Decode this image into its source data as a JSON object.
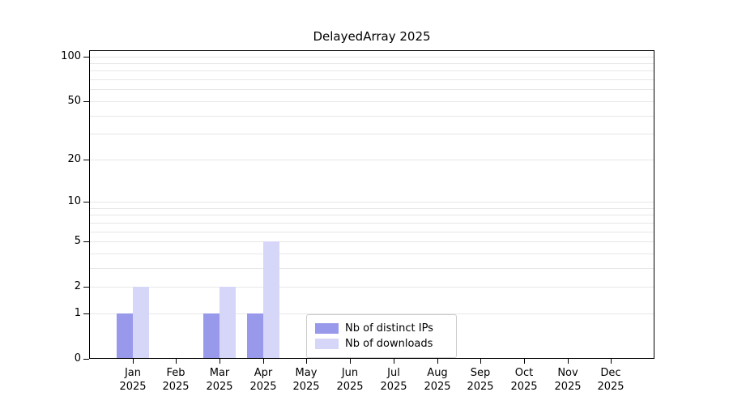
{
  "chart_data": {
    "type": "bar",
    "title": "DelayedArray 2025",
    "categories": [
      "Jan",
      "Feb",
      "Mar",
      "Apr",
      "May",
      "Jun",
      "Jul",
      "Aug",
      "Sep",
      "Oct",
      "Nov",
      "Dec"
    ],
    "year": "2025",
    "series": [
      {
        "name": "Nb of distinct IPs",
        "color": "#9999ec",
        "values": [
          1,
          0,
          1,
          1,
          0,
          0,
          0,
          0,
          0,
          0,
          0,
          0
        ]
      },
      {
        "name": "Nb of downloads",
        "color": "#d6d6f8",
        "values": [
          2,
          0,
          2,
          5,
          0,
          0,
          0,
          0,
          0,
          0,
          0,
          0
        ]
      }
    ],
    "yscale": "log1p",
    "ylim": [
      0,
      110
    ],
    "yticks": [
      0,
      1,
      2,
      5,
      10,
      20,
      50,
      100
    ],
    "gridline_values": [
      1,
      2,
      3,
      4,
      5,
      6,
      7,
      8,
      9,
      10,
      20,
      30,
      40,
      50,
      60,
      70,
      80,
      90,
      100
    ],
    "grid": true,
    "legend_position": "lower center",
    "xlabel": "",
    "ylabel": ""
  },
  "colors": {
    "grid": "#e7e7e7",
    "axis": "#000000",
    "background": "#ffffff",
    "legend_border": "#cccccc"
  }
}
